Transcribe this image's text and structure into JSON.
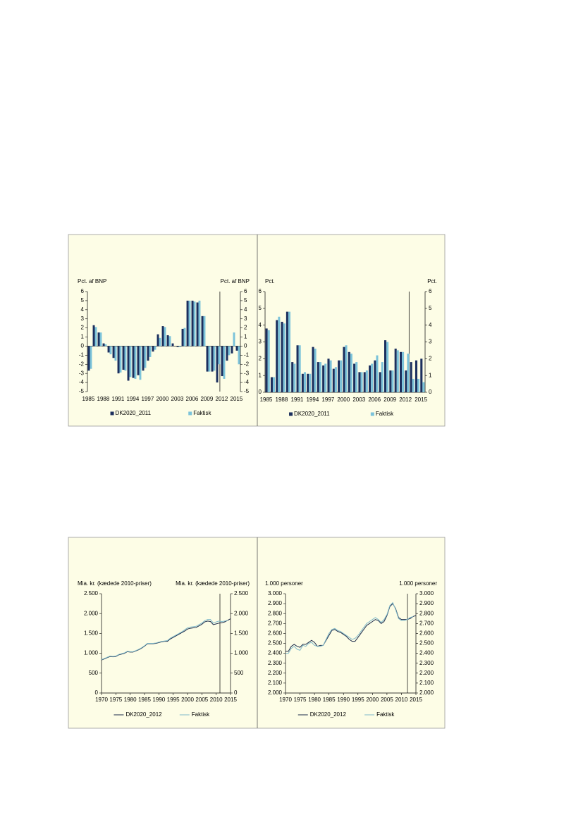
{
  "chart_data": [
    {
      "type": "bar",
      "ylabel": "Pct. af BNP",
      "y2label": "Pct. af BNP",
      "categories": [
        "1985",
        null,
        null,
        "1988",
        null,
        null,
        "1991",
        null,
        null,
        "1994",
        null,
        null,
        "1997",
        null,
        null,
        "2000",
        null,
        null,
        "2003",
        null,
        null,
        "2006",
        null,
        null,
        "2009",
        null,
        null,
        "2012",
        null,
        null,
        "2015"
      ],
      "series": [
        {
          "name": "DK2020_2011",
          "color": "#1c2f5e",
          "values": [
            -2.7,
            2.3,
            1.5,
            0.3,
            -0.7,
            -1.3,
            -3.0,
            -2.6,
            -3.8,
            -3.5,
            -3.2,
            -2.7,
            -1.6,
            -0.6,
            1.3,
            2.2,
            1.2,
            0.3,
            -0.1,
            1.9,
            5.0,
            5.0,
            4.8,
            3.3,
            -2.8,
            -2.8,
            -4.0,
            -3.3,
            -1.6,
            -0.8,
            -0.5
          ]
        },
        {
          "name": "Faktisk",
          "color": "#7cc3da",
          "values": [
            -2.5,
            2.1,
            1.5,
            0.2,
            -0.9,
            -1.6,
            -2.9,
            -2.7,
            -3.4,
            -3.6,
            -3.7,
            -2.4,
            -1.2,
            -0.4,
            0.9,
            2.1,
            1.1,
            0.0,
            -0.1,
            2.0,
            5.0,
            4.9,
            5.0,
            3.3,
            -2.8,
            -2.7,
            -2.0,
            -3.6,
            -1.0,
            1.5,
            -2.0
          ]
        }
      ],
      "ylim": [
        -5,
        6
      ],
      "yticks": [
        -5,
        -4,
        -3,
        -2,
        -1,
        0,
        1,
        2,
        3,
        4,
        5,
        6
      ]
    },
    {
      "type": "bar",
      "ylabel": "Pct.",
      "y2label": "Pct.",
      "categories": [
        "1985",
        null,
        null,
        "1988",
        null,
        null,
        "1991",
        null,
        null,
        "1994",
        null,
        null,
        "1997",
        null,
        null,
        "2000",
        null,
        null,
        "2003",
        null,
        null,
        "2006",
        null,
        null,
        "2009",
        null,
        null,
        "2012",
        null,
        null,
        "2015"
      ],
      "series": [
        {
          "name": "DK2020_2011",
          "color": "#1c2f5e",
          "values": [
            3.8,
            0.9,
            4.3,
            4.2,
            4.8,
            1.8,
            2.8,
            1.1,
            1.1,
            2.7,
            1.8,
            1.6,
            2.0,
            1.4,
            1.9,
            2.7,
            2.4,
            1.7,
            1.2,
            1.2,
            1.6,
            1.9,
            1.2,
            3.1,
            1.3,
            2.6,
            2.4,
            1.3,
            1.8,
            1.9,
            2.0
          ]
        },
        {
          "name": "Faktisk",
          "color": "#7cc3da",
          "values": [
            3.7,
            0.9,
            4.5,
            4.1,
            4.8,
            1.7,
            2.8,
            1.2,
            1.1,
            2.6,
            1.8,
            1.7,
            1.9,
            1.5,
            1.9,
            2.8,
            2.3,
            1.8,
            1.2,
            1.3,
            1.7,
            2.2,
            1.8,
            3.0,
            1.3,
            2.5,
            2.4,
            2.3,
            0.8,
            0.8,
            0.6
          ]
        }
      ],
      "ylim": [
        0,
        6
      ],
      "yticks": [
        0,
        1,
        2,
        3,
        4,
        5,
        6
      ]
    },
    {
      "type": "line",
      "ylabel": "Mia. kr. (kædede 2010-priser)",
      "y2label": "Mia. kr. (kædede 2010-priser)",
      "x": [
        1970,
        1971,
        1972,
        1973,
        1974,
        1975,
        1976,
        1977,
        1978,
        1979,
        1980,
        1981,
        1982,
        1983,
        1984,
        1985,
        1986,
        1987,
        1988,
        1989,
        1990,
        1991,
        1992,
        1993,
        1994,
        1995,
        1996,
        1997,
        1998,
        1999,
        2000,
        2001,
        2002,
        2003,
        2004,
        2005,
        2006,
        2007,
        2008,
        2009,
        2010,
        2011,
        2012,
        2013,
        2014,
        2015
      ],
      "series": [
        {
          "name": "DK2020_2012",
          "color": "#1c2b4a",
          "values": [
            830,
            860,
            890,
            920,
            910,
            920,
            960,
            980,
            1000,
            1040,
            1030,
            1030,
            1060,
            1090,
            1130,
            1180,
            1240,
            1240,
            1240,
            1250,
            1270,
            1290,
            1300,
            1300,
            1360,
            1400,
            1440,
            1480,
            1520,
            1560,
            1610,
            1630,
            1640,
            1650,
            1690,
            1730,
            1790,
            1810,
            1800,
            1720,
            1740,
            1760,
            1770,
            1790,
            1830,
            1870
          ]
        },
        {
          "name": "Faktisk",
          "color": "#7fb9c9",
          "values": [
            840,
            870,
            900,
            930,
            920,
            930,
            970,
            990,
            1010,
            1050,
            1040,
            1040,
            1070,
            1100,
            1140,
            1190,
            1250,
            1250,
            1250,
            1260,
            1280,
            1300,
            1310,
            1320,
            1380,
            1420,
            1460,
            1500,
            1540,
            1590,
            1640,
            1660,
            1670,
            1680,
            1720,
            1760,
            1820,
            1850,
            1850,
            1760,
            1790,
            1810,
            1800,
            1810,
            1830,
            null
          ]
        }
      ],
      "xlim": [
        1970,
        2015
      ],
      "xticks": [
        1970,
        1975,
        1980,
        1985,
        1990,
        1995,
        2000,
        2005,
        2010,
        2015
      ],
      "ylim": [
        0,
        2500
      ],
      "yticks": [
        0,
        500,
        {
          "value": 1000,
          "label": "1.000"
        },
        {
          "value": 1500,
          "label": "1.500"
        },
        {
          "value": 2000,
          "label": "2.000"
        },
        {
          "value": 2500,
          "label": "2.500"
        }
      ]
    },
    {
      "type": "line",
      "ylabel": "1.000 personer",
      "y2label": "1.000 personer",
      "x": [
        1970,
        1971,
        1972,
        1973,
        1974,
        1975,
        1976,
        1977,
        1978,
        1979,
        1980,
        1981,
        1982,
        1983,
        1984,
        1985,
        1986,
        1987,
        1988,
        1989,
        1990,
        1991,
        1992,
        1993,
        1994,
        1995,
        1996,
        1997,
        1998,
        1999,
        2000,
        2001,
        2002,
        2003,
        2004,
        2005,
        2006,
        2007,
        2008,
        2009,
        2010,
        2011,
        2012,
        2013,
        2014,
        2015
      ],
      "series": [
        {
          "name": "DK2020_2012",
          "color": "#1c2b4a",
          "values": [
            2420,
            2420,
            2470,
            2490,
            2470,
            2460,
            2490,
            2490,
            2510,
            2530,
            2510,
            2470,
            2480,
            2480,
            2530,
            2580,
            2630,
            2640,
            2620,
            2610,
            2590,
            2570,
            2540,
            2520,
            2520,
            2560,
            2600,
            2640,
            2680,
            2700,
            2720,
            2740,
            2730,
            2700,
            2720,
            2780,
            2870,
            2900,
            2850,
            2760,
            2740,
            2740,
            2740,
            2750,
            2770,
            2780
          ]
        },
        {
          "name": "Faktisk",
          "color": "#7fb9c9",
          "values": [
            2400,
            2400,
            2450,
            2470,
            2440,
            2430,
            2480,
            2470,
            2500,
            2510,
            2480,
            2470,
            2470,
            2480,
            2540,
            2600,
            2640,
            2650,
            2630,
            2620,
            2600,
            2580,
            2560,
            2540,
            2550,
            2580,
            2620,
            2660,
            2700,
            2720,
            2740,
            2760,
            2740,
            2710,
            2740,
            2790,
            2880,
            2910,
            2840,
            2750,
            2730,
            2730,
            2740,
            2760,
            2770,
            null
          ]
        }
      ],
      "xlim": [
        1970,
        2015
      ],
      "xticks": [
        1970,
        1975,
        1980,
        1985,
        1990,
        1995,
        2000,
        2005,
        2010,
        2015
      ],
      "ylim": [
        2000,
        3000
      ],
      "yticks": [
        {
          "value": 2000,
          "label": "2.000"
        },
        {
          "value": 2100,
          "label": "2.100"
        },
        {
          "value": 2200,
          "label": "2.200"
        },
        {
          "value": 2300,
          "label": "2.300"
        },
        {
          "value": 2400,
          "label": "2.400"
        },
        {
          "value": 2500,
          "label": "2.500"
        },
        {
          "value": 2600,
          "label": "2.600"
        },
        {
          "value": 2700,
          "label": "2.700"
        },
        {
          "value": 2800,
          "label": "2.800"
        },
        {
          "value": 2900,
          "label": "2.900"
        },
        {
          "value": 3000,
          "label": "3.000"
        }
      ]
    }
  ]
}
